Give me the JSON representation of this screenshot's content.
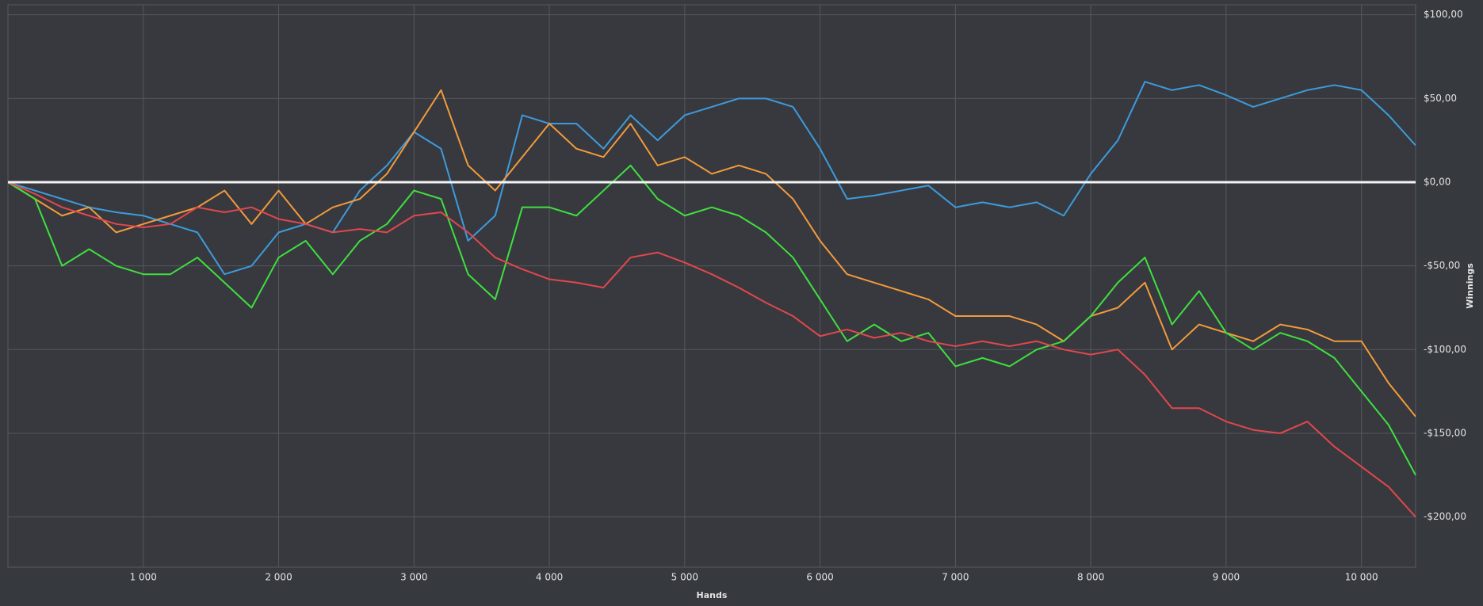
{
  "chart_data": {
    "type": "line",
    "x_label": "Hands",
    "y_label": "Winnings",
    "x": [
      0,
      200,
      400,
      600,
      800,
      1000,
      1200,
      1400,
      1600,
      1800,
      2000,
      2200,
      2400,
      2600,
      2800,
      3000,
      3200,
      3400,
      3600,
      3800,
      4000,
      4200,
      4400,
      4600,
      4800,
      5000,
      5200,
      5400,
      5600,
      5800,
      6000,
      6200,
      6400,
      6600,
      6800,
      7000,
      7200,
      7400,
      7600,
      7800,
      8000,
      8200,
      8400,
      8600,
      8800,
      9000,
      9200,
      9400,
      9600,
      9800,
      10000,
      10200,
      10400
    ],
    "series": [
      {
        "color": "#3d9bdc",
        "values": [
          0,
          -5,
          -10,
          -15,
          -18,
          -20,
          -25,
          -30,
          -55,
          -50,
          -30,
          -25,
          -30,
          -5,
          10,
          30,
          20,
          -35,
          -20,
          40,
          35,
          35,
          20,
          40,
          25,
          40,
          45,
          50,
          50,
          45,
          20,
          -10,
          -8,
          -5,
          -2,
          -15,
          -12,
          -15,
          -12,
          -20,
          5,
          25,
          60,
          55,
          58,
          52,
          45,
          50,
          55,
          58,
          55,
          40,
          22
        ]
      },
      {
        "color": "#f39a3c",
        "values": [
          0,
          -10,
          -20,
          -15,
          -30,
          -25,
          -20,
          -15,
          -5,
          -25,
          -5,
          -25,
          -15,
          -10,
          5,
          30,
          55,
          10,
          -5,
          15,
          35,
          20,
          15,
          35,
          10,
          15,
          5,
          10,
          5,
          -10,
          -35,
          -55,
          -60,
          -65,
          -70,
          -80,
          -80,
          -80,
          -85,
          -95,
          -80,
          -75,
          -60,
          -100,
          -85,
          -90,
          -95,
          -85,
          -88,
          -95,
          -95,
          -120,
          -140
        ]
      },
      {
        "color": "#3fe03f",
        "values": [
          0,
          -10,
          -50,
          -40,
          -50,
          -55,
          -55,
          -45,
          -60,
          -75,
          -45,
          -35,
          -55,
          -35,
          -25,
          -5,
          -10,
          -55,
          -70,
          -15,
          -15,
          -20,
          -5,
          10,
          -10,
          -20,
          -15,
          -20,
          -30,
          -45,
          -70,
          -95,
          -85,
          -95,
          -90,
          -110,
          -105,
          -110,
          -100,
          -95,
          -80,
          -60,
          -45,
          -85,
          -65,
          -90,
          -100,
          -90,
          -95,
          -105,
          -125,
          -145,
          -175
        ]
      },
      {
        "color": "#e2474d",
        "values": [
          0,
          -7,
          -15,
          -20,
          -25,
          -27,
          -25,
          -15,
          -18,
          -15,
          -22,
          -25,
          -30,
          -28,
          -30,
          -20,
          -18,
          -30,
          -45,
          -52,
          -58,
          -60,
          -63,
          -45,
          -42,
          -48,
          -55,
          -63,
          -72,
          -80,
          -92,
          -88,
          -93,
          -90,
          -95,
          -98,
          -95,
          -98,
          -95,
          -100,
          -103,
          -100,
          -115,
          -135,
          -135,
          -143,
          -148,
          -150,
          -143,
          -158,
          -170,
          -182,
          -200
        ]
      }
    ],
    "xlim": [
      0,
      10400
    ],
    "ylim": [
      -230,
      106
    ],
    "xticks": [
      {
        "value": 1000,
        "label": "1 000"
      },
      {
        "value": 2000,
        "label": "2 000"
      },
      {
        "value": 3000,
        "label": "3 000"
      },
      {
        "value": 4000,
        "label": "4 000"
      },
      {
        "value": 5000,
        "label": "5 000"
      },
      {
        "value": 6000,
        "label": "6 000"
      },
      {
        "value": 7000,
        "label": "7 000"
      },
      {
        "value": 8000,
        "label": "8 000"
      },
      {
        "value": 9000,
        "label": "9 000"
      },
      {
        "value": 10000,
        "label": "10 000"
      }
    ],
    "yticks": [
      {
        "value": 100,
        "label": "$100,00"
      },
      {
        "value": 50,
        "label": "$50,00"
      },
      {
        "value": 0,
        "label": "$0,00"
      },
      {
        "value": -50,
        "label": "-$50,00"
      },
      {
        "value": -100,
        "label": "-$100,00"
      },
      {
        "value": -150,
        "label": "-$150,00"
      },
      {
        "value": -200,
        "label": "-$200,00"
      }
    ],
    "grid": true,
    "zero_line": true
  }
}
